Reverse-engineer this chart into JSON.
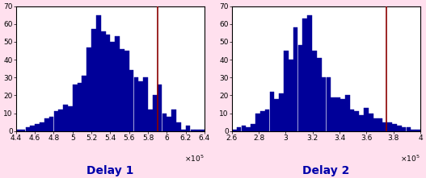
{
  "title1": "Delay 1",
  "title2": "Delay 2",
  "xlim1": [
    440000,
    640000
  ],
  "xlim2": [
    260000,
    400000
  ],
  "ylim": [
    0,
    70
  ],
  "xticks1": [
    440000,
    460000,
    480000,
    500000,
    520000,
    540000,
    560000,
    580000,
    600000,
    620000,
    640000
  ],
  "xtick_labels1": [
    "4.4",
    "4.6",
    "4.8",
    "5",
    "5.2",
    "5.4",
    "5.6",
    "5.8",
    "6",
    "6.2",
    "6.4"
  ],
  "xticks2": [
    260000,
    280000,
    300000,
    320000,
    340000,
    360000,
    380000,
    400000
  ],
  "xtick_labels2": [
    "2.6",
    "2.8",
    "3",
    "3.2",
    "3.4",
    "3.6",
    "3.8",
    "4"
  ],
  "yticks": [
    0,
    10,
    20,
    30,
    40,
    50,
    60,
    70
  ],
  "bar_color": "#000099",
  "vline1_x": 590000,
  "vline2_x": 375000,
  "vline_color": "#8B0000",
  "background_color": "#ffffff",
  "outer_bg": "#ffe0ee",
  "title_fontsize": 10,
  "tick_fontsize": 6.5,
  "hist1_bin_edges": [
    440000,
    445000,
    450000,
    455000,
    460000,
    465000,
    470000,
    475000,
    480000,
    485000,
    490000,
    495000,
    500000,
    505000,
    510000,
    515000,
    520000,
    525000,
    530000,
    535000,
    540000,
    545000,
    550000,
    555000,
    560000,
    565000,
    570000,
    575000,
    580000,
    585000,
    590000,
    595000,
    600000,
    605000,
    610000,
    615000,
    620000,
    625000,
    630000,
    635000,
    640000
  ],
  "hist1_counts": [
    1,
    1,
    2,
    3,
    4,
    5,
    7,
    8,
    11,
    12,
    15,
    14,
    26,
    27,
    31,
    47,
    57,
    65,
    56,
    54,
    50,
    53,
    46,
    45,
    34,
    30,
    28,
    30,
    12,
    20,
    26,
    10,
    8,
    12,
    5,
    1,
    3,
    1,
    1,
    1
  ],
  "hist2_bin_edges": [
    260000,
    263500,
    267000,
    270500,
    274000,
    277500,
    281000,
    284500,
    288000,
    291500,
    295000,
    298500,
    302000,
    305500,
    309000,
    312500,
    316000,
    319500,
    323000,
    326500,
    330000,
    333500,
    337000,
    340500,
    344000,
    347500,
    351000,
    354500,
    358000,
    361500,
    365000,
    368500,
    372000,
    375500,
    379000,
    382500,
    386000,
    389500,
    393000,
    396500,
    400000
  ],
  "hist2_counts": [
    1,
    2,
    3,
    2,
    4,
    10,
    11,
    12,
    22,
    18,
    21,
    45,
    40,
    58,
    48,
    63,
    65,
    45,
    41,
    30,
    30,
    19,
    19,
    18,
    20,
    12,
    11,
    9,
    13,
    10,
    7,
    7,
    5,
    5,
    4,
    3,
    2,
    2,
    1,
    1
  ]
}
